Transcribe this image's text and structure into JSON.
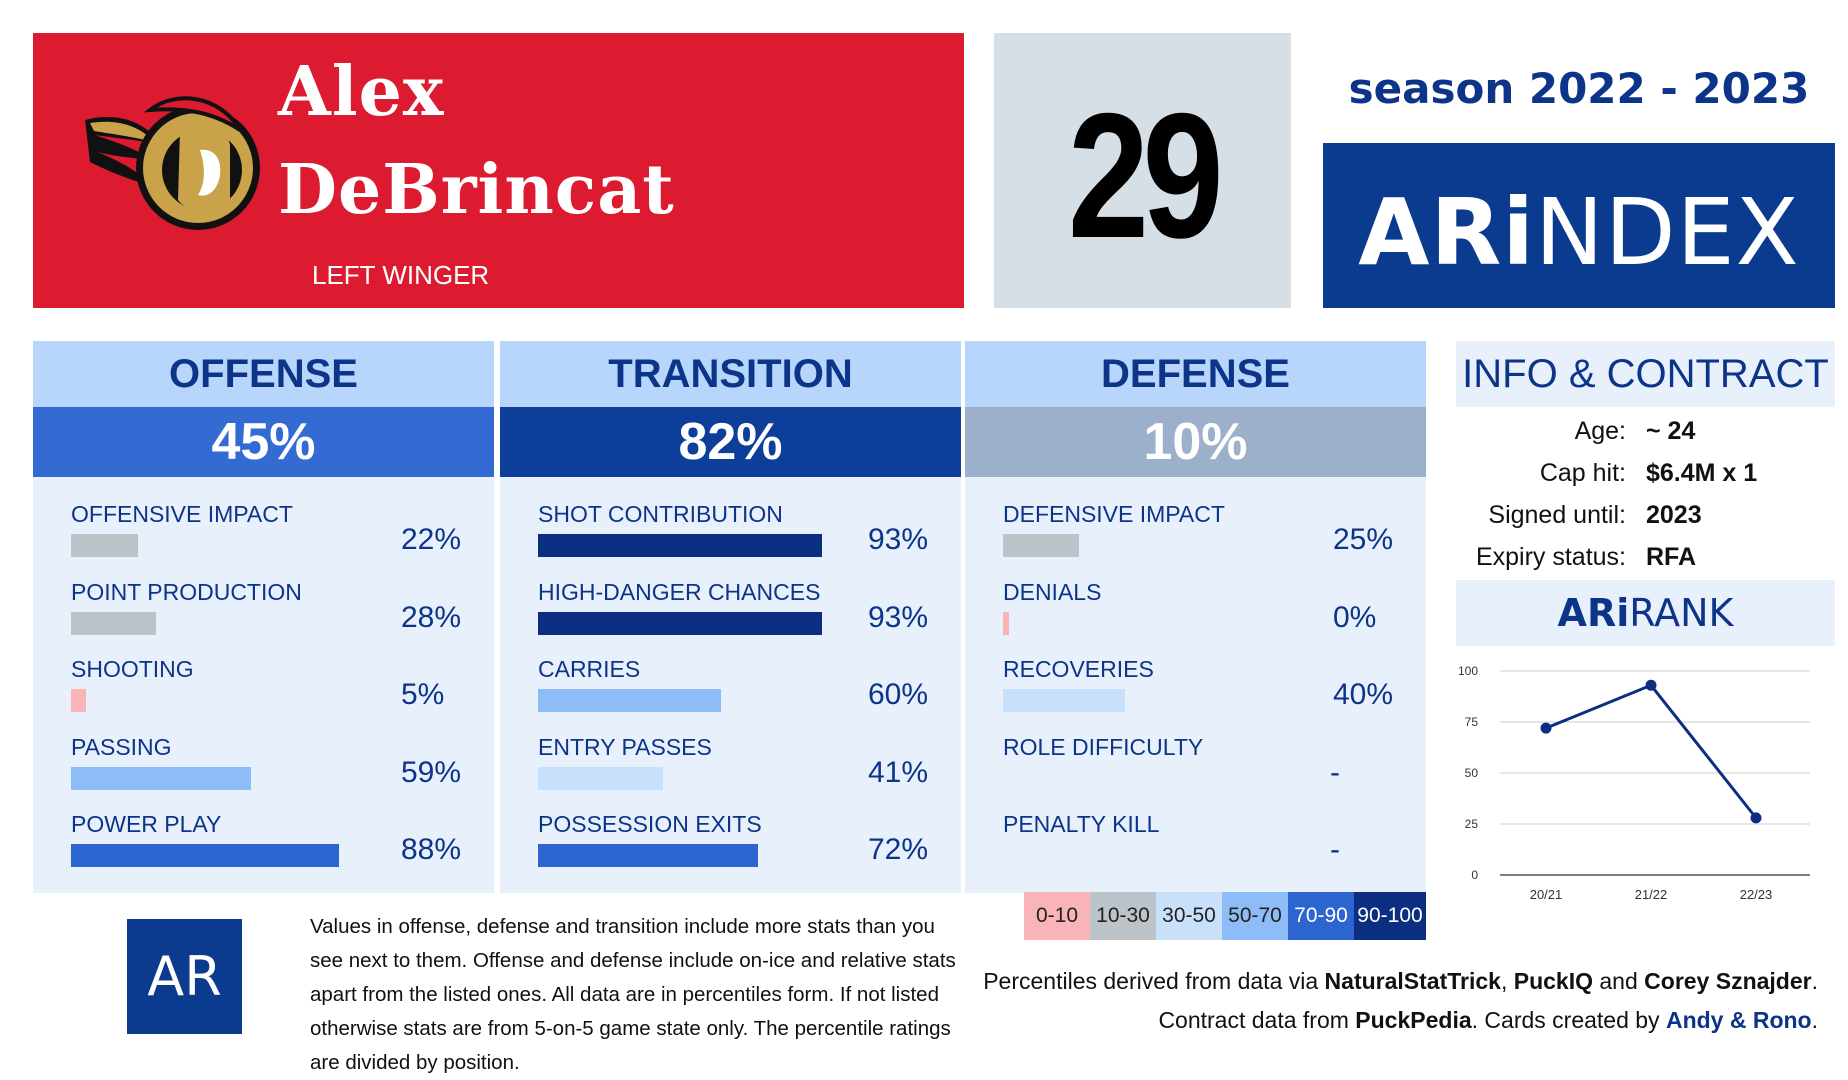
{
  "player": {
    "first_name": "Alex",
    "last_name": "DeBrincat",
    "position": "LEFT WINGER",
    "number": "29",
    "team_logo": "ottawa-senators-logo"
  },
  "season": "season 2022 - 2023",
  "brand": {
    "prefix": "ARi",
    "suffix": "NDEX"
  },
  "colors": {
    "team_red": "#dc1b31",
    "brand_blue": "#0b3b8f",
    "tier_0_10": "#f9b4b8",
    "tier_10_30": "#bcc4c9",
    "tier_30_50": "#c9e0fb",
    "tier_50_70": "#8dbcf7",
    "tier_70_90": "#2d65d0",
    "tier_90_100": "#0c2e80"
  },
  "sections": [
    {
      "title": "OFFENSE",
      "pct": "45%",
      "stats": [
        {
          "label": "OFFENSIVE IMPACT",
          "value": "22%",
          "pct": 22
        },
        {
          "label": "POINT PRODUCTION",
          "value": "28%",
          "pct": 28
        },
        {
          "label": "SHOOTING",
          "value": "5%",
          "pct": 5
        },
        {
          "label": "PASSING",
          "value": "59%",
          "pct": 59
        },
        {
          "label": "POWER PLAY",
          "value": "88%",
          "pct": 88
        }
      ]
    },
    {
      "title": "TRANSITION",
      "pct": "82%",
      "stats": [
        {
          "label": "SHOT CONTRIBUTION",
          "value": "93%",
          "pct": 93
        },
        {
          "label": "HIGH-DANGER CHANCES",
          "value": "93%",
          "pct": 93
        },
        {
          "label": "CARRIES",
          "value": "60%",
          "pct": 60
        },
        {
          "label": "ENTRY PASSES",
          "value": "41%",
          "pct": 41
        },
        {
          "label": "POSSESSION EXITS",
          "value": "72%",
          "pct": 72
        }
      ]
    },
    {
      "title": "DEFENSE",
      "pct": "10%",
      "stats": [
        {
          "label": "DEFENSIVE IMPACT",
          "value": "25%",
          "pct": 25
        },
        {
          "label": "DENIALS",
          "value": "0%",
          "pct": 0
        },
        {
          "label": "RECOVERIES",
          "value": "40%",
          "pct": 40
        },
        {
          "label": "ROLE DIFFICULTY",
          "value": "-",
          "pct": null
        },
        {
          "label": "PENALTY KILL",
          "value": "-",
          "pct": null
        }
      ]
    }
  ],
  "info": {
    "title": "INFO & CONTRACT",
    "rows": [
      {
        "key": "Age:",
        "value": "~ 24"
      },
      {
        "key": "Cap hit:",
        "value": "$6.4M x 1"
      },
      {
        "key": "Signed until:",
        "value": "2023"
      },
      {
        "key": "Expiry status:",
        "value": "RFA"
      }
    ]
  },
  "rank": {
    "prefix": "ARi",
    "suffix": "RANK"
  },
  "chart_data": {
    "type": "line",
    "categories": [
      "20/21",
      "21/22",
      "22/23"
    ],
    "values": [
      72,
      93,
      28
    ],
    "ylim": [
      0,
      100
    ],
    "yticks": [
      0,
      25,
      50,
      75,
      100
    ],
    "grid": true,
    "color": "#0c2e80"
  },
  "legend": [
    "0-10",
    "10-30",
    "30-50",
    "50-70",
    "70-90",
    "90-100"
  ],
  "footer": {
    "logo": "AR",
    "note": "Values in offense, defense and transition include more stats than you see next to them. Offense and defense include on-ice and relative stats apart from the listed ones. All data are in percentiles form. If not listed otherwise stats are from 5-on-5 game state only. The percentile ratings are divided by position.",
    "credits": {
      "prefix": "Percentiles derived from data via ",
      "source1": "NaturalStatTrick",
      "sep1": ", ",
      "source2": "PuckIQ",
      "sep2": " and ",
      "source3": "Corey Sznajder",
      "end1": ".",
      "contract_prefix": "Contract data from ",
      "contract_source": "PuckPedia",
      "cards_prefix": ". Cards created by ",
      "authors": "Andy & Rono",
      "end2": "."
    }
  }
}
